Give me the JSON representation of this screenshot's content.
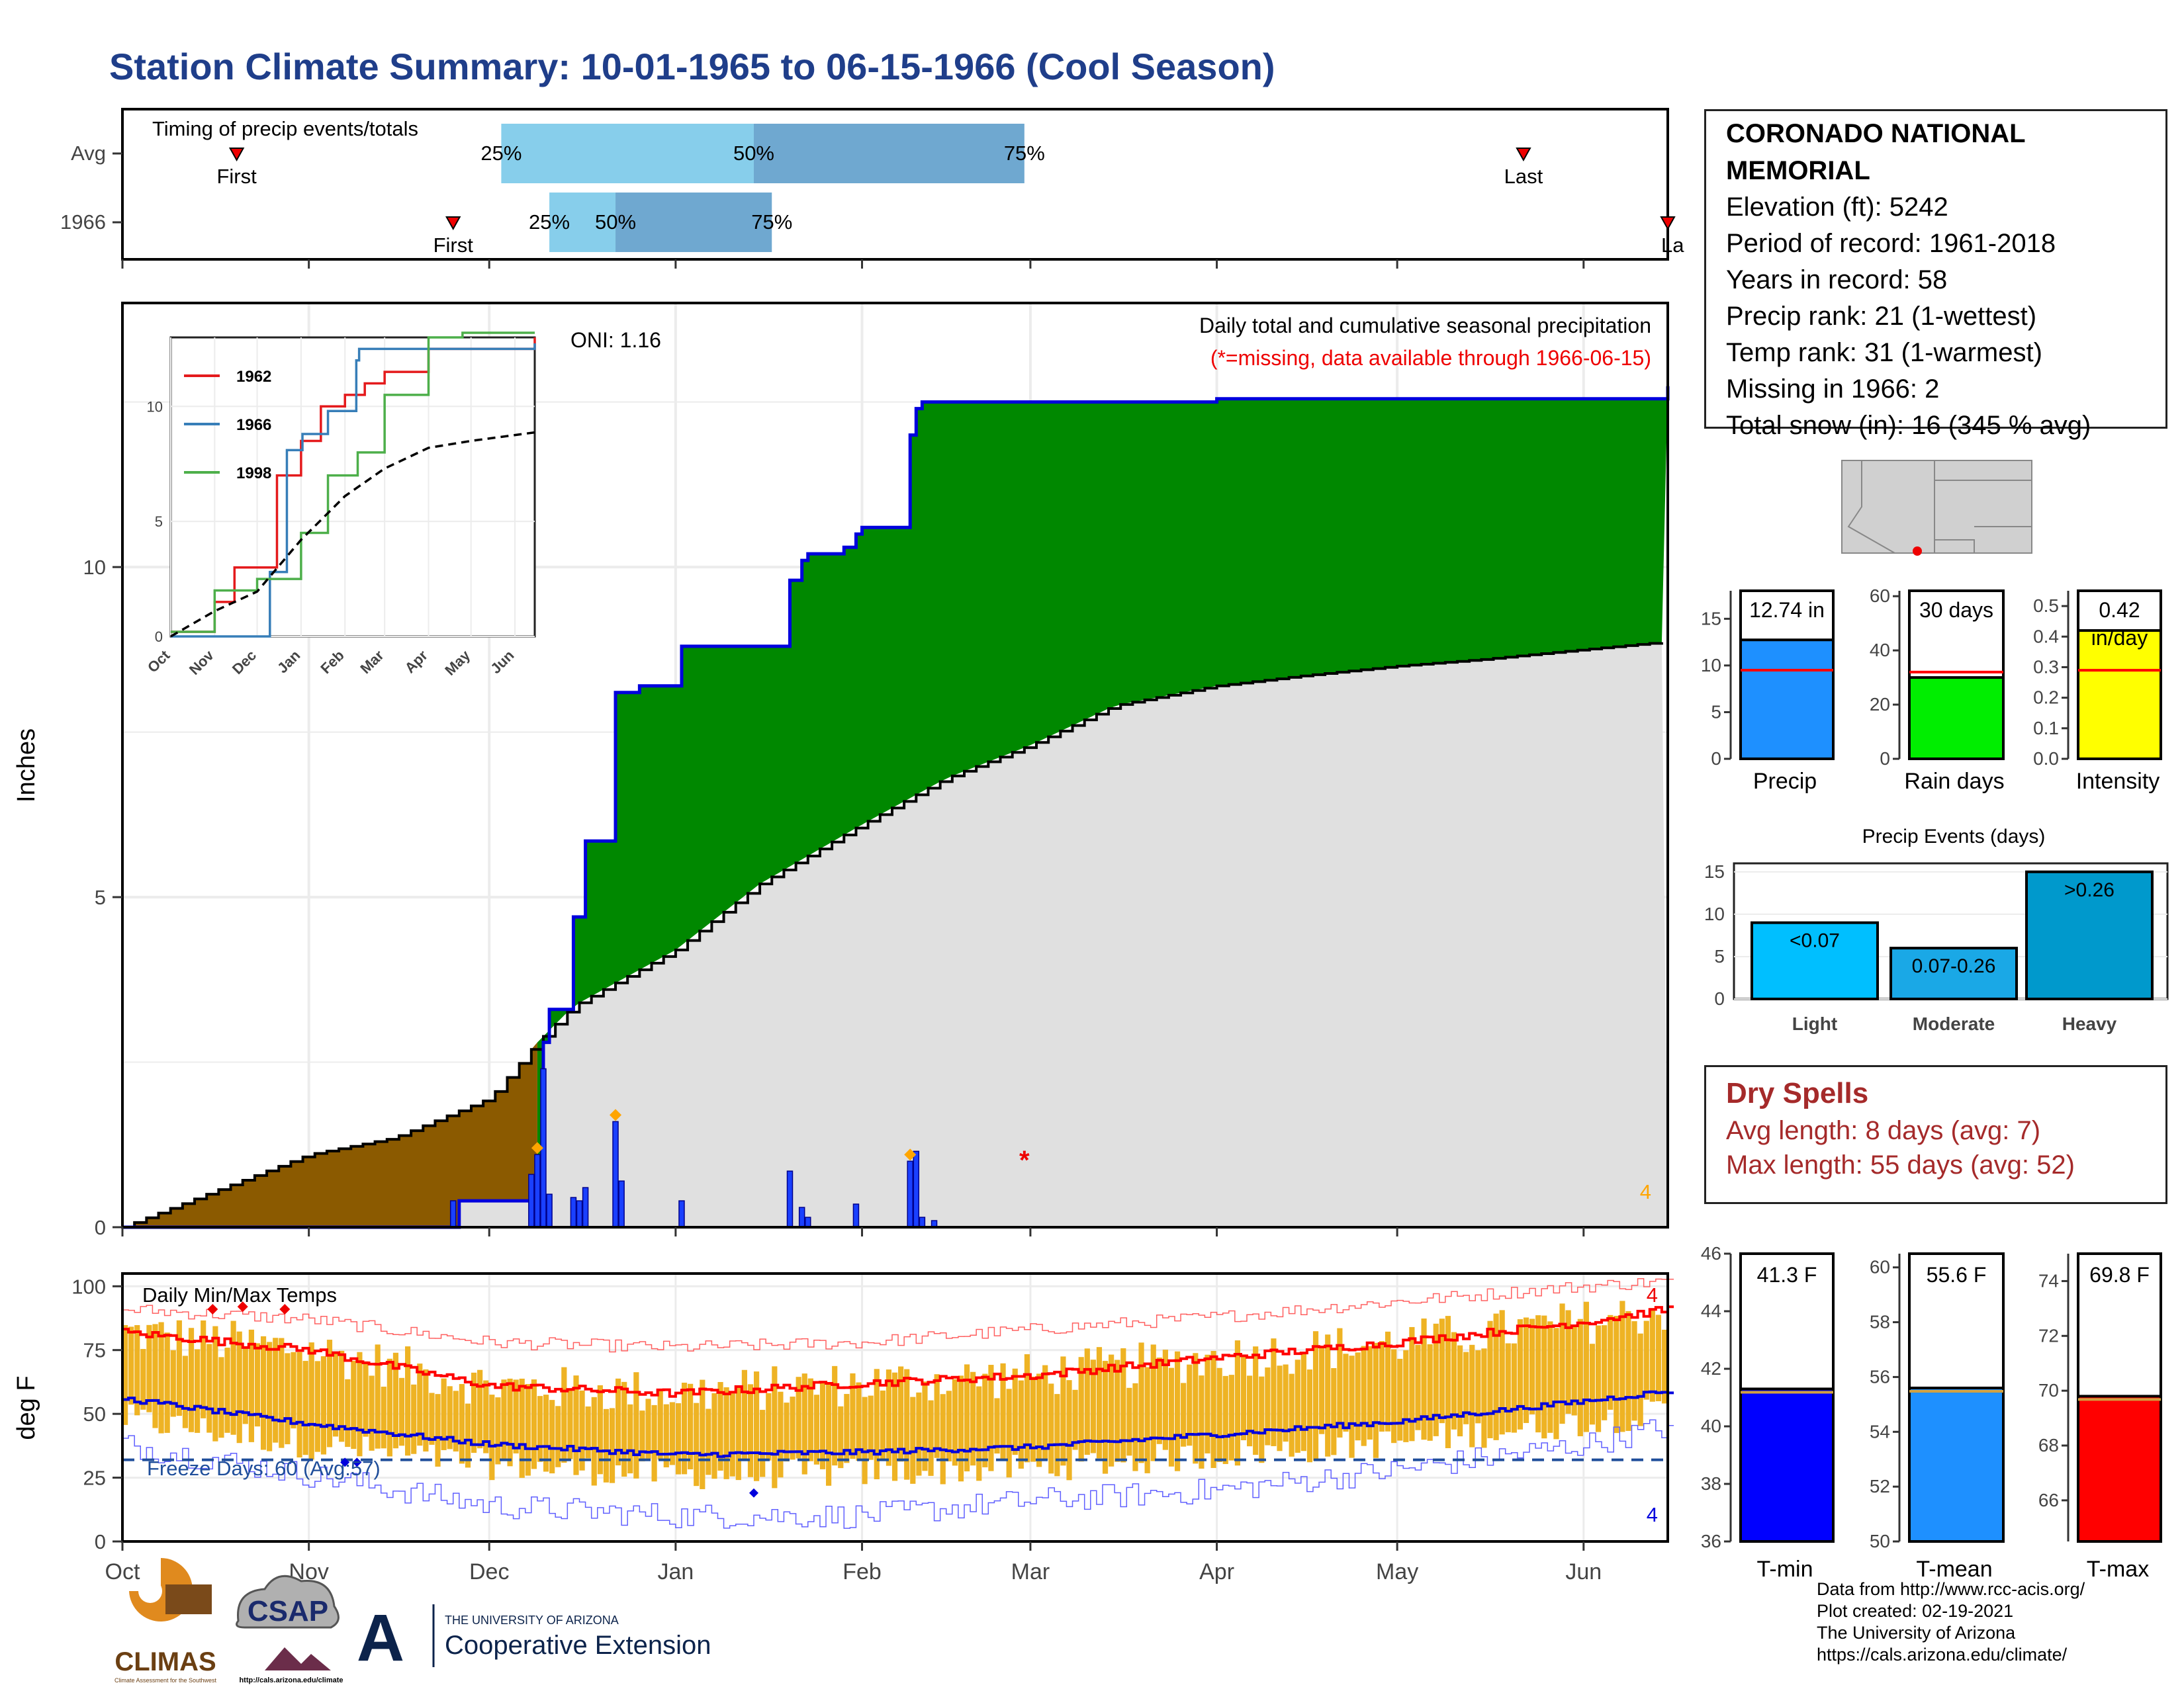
{
  "title": "Station Climate Summary: 10-01-1965 to 06-15-1966 (Cool Season)",
  "station": {
    "name": "CORONADO NATIONAL MEMORIAL",
    "lines": [
      "Elevation (ft): 5242",
      "Period of record: 1961-2018",
      "Years in record: 58",
      "Precip rank: 21 (1-wettest)",
      "Temp rank: 31 (1-warmest)",
      "Missing in 1966: 2",
      "Total snow (in): 16 (345 % avg)"
    ]
  },
  "colors": {
    "title": "#1f3e8a",
    "observed_area": "#008800",
    "average_area": "#e0e0e0",
    "early_area": "#8b5a00",
    "daily_bars": "#1a40ff",
    "dry_spells": "#a52a2a",
    "temp_bars": "#eeb324",
    "precip_bar": "#1e90ff",
    "raindays_bar": "#00ee00",
    "intensity_bar": "#ffff00",
    "light_bar": "#00bfff",
    "moderate_bar": "#1aa8e6",
    "heavy_bar": "#0099cc",
    "tmin_bar": "#0000ff",
    "tmean_bar": "#1e90ff",
    "tmax_bar": "#ff0000"
  },
  "timing": {
    "label": "Timing of precip events/totals",
    "rows": [
      "Avg",
      "1966"
    ],
    "first_label": "First",
    "last_label": "Last",
    "last_label_cut": "La",
    "pct_labels": [
      "25%",
      "50%",
      "75%"
    ]
  },
  "main": {
    "annotation_title": "Daily total and cumulative seasonal precipitation",
    "annotation_missing": "(*=missing, data available through 1966-06-15)",
    "oni": "ONI: 1.16",
    "ylabel": "Inches",
    "corner_count": "4",
    "missing_marker": "*"
  },
  "temps": {
    "title": "Daily Min/Max Temps",
    "ylabel": "deg F",
    "freeze": "Freeze Days: 60 (Avg:57)",
    "count_top": "4",
    "count_bottom": "4"
  },
  "months": [
    "Oct",
    "Nov",
    "Dec",
    "Jan",
    "Feb",
    "Mar",
    "Apr",
    "May",
    "Jun"
  ],
  "precip_events_title": "Precip Events (days)",
  "dry_spells": {
    "title": "Dry Spells",
    "avg": "Avg length: 8 days (avg: 7)",
    "max": "Max length: 55 days (avg: 52)"
  },
  "credits": [
    "Data from http://www.rcc-acis.org/",
    "Plot created: 02-19-2021",
    "The University of Arizona",
    "https://cals.arizona.edu/climate/"
  ],
  "logos": {
    "climas": "CLIMAS",
    "climas_sub": "Climate Assessment for the Southwest",
    "csap": "CSAP",
    "csap_url": "http://cals.arizona.edu/climate",
    "ua_small": "THE UNIVERSITY OF ARIZONA",
    "ua_big": "Cooperative Extension",
    "ua_letter": "A"
  },
  "chart_data": [
    {
      "id": "timing",
      "type": "bar",
      "title": "Timing of precip events/totals",
      "x_axis": "date, Oct 1 1965 - Jun 15 1966",
      "rows": [
        {
          "name": "Avg",
          "first": "1965-10-20",
          "p25": "1965-12-03",
          "p50": "1966-01-14",
          "p75": "1966-02-28",
          "last": "1966-05-22"
        },
        {
          "name": "1966",
          "first": "1965-11-25",
          "p25": "1965-12-11",
          "p50": "1965-12-22",
          "p75": "1966-01-17",
          "last": "1966-06-15"
        }
      ]
    },
    {
      "id": "cumulative_precip",
      "type": "area",
      "title": "Daily total and cumulative seasonal precipitation",
      "ylabel": "Inches",
      "ylim": [
        0,
        14
      ],
      "yticks": [
        0,
        5,
        10
      ],
      "x_range": [
        "1965-10-01",
        "1966-06-15"
      ],
      "series": [
        {
          "name": "cumulative observed",
          "points": [
            [
              "1965-10-01",
              0
            ],
            [
              "1965-11-25",
              0
            ],
            [
              "1965-11-26",
              0.4
            ],
            [
              "1965-12-09",
              0.4
            ],
            [
              "1965-12-10",
              2.8
            ],
            [
              "1965-12-11",
              3.3
            ],
            [
              "1965-12-14",
              3.3
            ],
            [
              "1965-12-15",
              4.7
            ],
            [
              "1965-12-17",
              5.85
            ],
            [
              "1965-12-21",
              5.85
            ],
            [
              "1965-12-22",
              8.1
            ],
            [
              "1965-12-26",
              8.2
            ],
            [
              "1966-01-01",
              8.2
            ],
            [
              "1966-01-02",
              8.8
            ],
            [
              "1966-01-19",
              8.8
            ],
            [
              "1966-01-20",
              9.8
            ],
            [
              "1966-01-22",
              10.1
            ],
            [
              "1966-01-23",
              10.2
            ],
            [
              "1966-01-29",
              10.3
            ],
            [
              "1966-01-31",
              10.5
            ],
            [
              "1966-02-01",
              10.6
            ],
            [
              "1966-02-08",
              10.6
            ],
            [
              "1966-02-09",
              12.0
            ],
            [
              "1966-02-10",
              12.4
            ],
            [
              "1966-02-11",
              12.5
            ],
            [
              "1966-03-01",
              12.5
            ],
            [
              "1966-04-01",
              12.55
            ],
            [
              "1966-06-15",
              12.74
            ]
          ]
        },
        {
          "name": "cumulative average",
          "points": [
            [
              "1965-10-01",
              0
            ],
            [
              "1965-10-15",
              0.5
            ],
            [
              "1965-11-01",
              1.1
            ],
            [
              "1965-11-15",
              1.35
            ],
            [
              "1965-12-01",
              1.95
            ],
            [
              "1965-12-09",
              2.8
            ],
            [
              "1965-12-15",
              3.35
            ],
            [
              "1966-01-01",
              4.2
            ],
            [
              "1966-01-15",
              5.2
            ],
            [
              "1966-02-01",
              6.1
            ],
            [
              "1966-02-15",
              6.8
            ],
            [
              "1966-03-01",
              7.3
            ],
            [
              "1966-03-15",
              7.9
            ],
            [
              "1966-04-01",
              8.2
            ],
            [
              "1966-04-15",
              8.35
            ],
            [
              "1966-05-01",
              8.5
            ],
            [
              "1966-05-15",
              8.6
            ],
            [
              "1966-06-01",
              8.75
            ],
            [
              "1966-06-15",
              8.87
            ]
          ]
        },
        {
          "name": "daily precip",
          "points": [
            [
              "1965-11-25",
              0.4
            ],
            [
              "1965-12-08",
              0.8
            ],
            [
              "1965-12-09",
              1.1
            ],
            [
              "1965-12-10",
              2.4
            ],
            [
              "1965-12-11",
              0.5
            ],
            [
              "1965-12-15",
              0.45
            ],
            [
              "1965-12-16",
              0.4
            ],
            [
              "1965-12-17",
              0.6
            ],
            [
              "1965-12-22",
              1.6
            ],
            [
              "1965-12-23",
              0.7
            ],
            [
              "1966-01-02",
              0.4
            ],
            [
              "1966-01-20",
              0.85
            ],
            [
              "1966-01-22",
              0.3
            ],
            [
              "1966-01-23",
              0.15
            ],
            [
              "1966-01-31",
              0.35
            ],
            [
              "1966-02-09",
              1.0
            ],
            [
              "1966-02-10",
              1.15
            ],
            [
              "1966-02-11",
              0.15
            ],
            [
              "1966-02-13",
              0.1
            ]
          ]
        }
      ]
    },
    {
      "id": "inset_cumulative",
      "type": "line",
      "ylim": [
        0,
        13
      ],
      "yticks": [
        0,
        5,
        10
      ],
      "x_labels": [
        "Oct",
        "Nov",
        "Dec",
        "Jan",
        "Feb",
        "Mar",
        "Apr",
        "May",
        "Jun"
      ],
      "series": [
        {
          "name": "1962",
          "color": "#e41a1c",
          "points": [
            [
              "1965-10-01",
              0.2
            ],
            [
              "1965-11-01",
              1.5
            ],
            [
              "1965-11-15",
              3
            ],
            [
              "1965-12-01",
              3
            ],
            [
              "1965-12-15",
              7
            ],
            [
              "1966-01-01",
              8.5
            ],
            [
              "1966-01-15",
              10
            ],
            [
              "1966-02-01",
              10.5
            ],
            [
              "1966-02-15",
              11
            ],
            [
              "1966-03-01",
              11.5
            ],
            [
              "1966-04-01",
              12.5
            ],
            [
              "1966-06-15",
              13
            ]
          ]
        },
        {
          "name": "1966",
          "color": "#377eb8",
          "points": [
            [
              "1965-10-01",
              0
            ],
            [
              "1965-11-25",
              0
            ],
            [
              "1965-12-10",
              2.8
            ],
            [
              "1965-12-22",
              8.1
            ],
            [
              "1966-01-02",
              8.8
            ],
            [
              "1966-01-20",
              9.8
            ],
            [
              "1966-02-09",
              12
            ],
            [
              "1966-02-11",
              12.5
            ],
            [
              "1966-06-15",
              12.74
            ]
          ]
        },
        {
          "name": "1998",
          "color": "#4daf4a",
          "points": [
            [
              "1965-10-01",
              0.2
            ],
            [
              "1965-11-01",
              2
            ],
            [
              "1965-12-01",
              2.5
            ],
            [
              "1966-01-01",
              4.5
            ],
            [
              "1966-01-20",
              7
            ],
            [
              "1966-02-10",
              8
            ],
            [
              "1966-03-01",
              10.5
            ],
            [
              "1966-04-01",
              13
            ],
            [
              "1966-04-25",
              13.2
            ],
            [
              "1966-06-15",
              13.2
            ]
          ]
        },
        {
          "name": "avg",
          "points": [
            [
              "1965-10-01",
              0
            ],
            [
              "1965-11-01",
              1.1
            ],
            [
              "1965-12-01",
              1.95
            ],
            [
              "1966-01-01",
              4.2
            ],
            [
              "1966-02-01",
              6.1
            ],
            [
              "1966-03-01",
              7.3
            ],
            [
              "1966-04-01",
              8.2
            ],
            [
              "1966-05-01",
              8.5
            ],
            [
              "1966-06-15",
              8.87
            ]
          ]
        }
      ]
    },
    {
      "id": "temperature",
      "type": "bar",
      "title": "Daily Min/Max Temps",
      "ylabel": "deg F",
      "ylim": [
        0,
        105
      ],
      "yticks": [
        0,
        25,
        50,
        75,
        100
      ],
      "freeze_line": 32,
      "series": [
        {
          "name": "avg max",
          "points": [
            [
              "1965-10-01",
              82
            ],
            [
              "1965-11-01",
              75
            ],
            [
              "1965-12-01",
              61
            ],
            [
              "1966-01-01",
              58
            ],
            [
              "1966-02-01",
              62
            ],
            [
              "1966-03-01",
              65
            ],
            [
              "1966-04-01",
              72
            ],
            [
              "1966-05-01",
              78
            ],
            [
              "1966-06-01",
              86
            ],
            [
              "1966-06-15",
              91
            ]
          ]
        },
        {
          "name": "avg min",
          "points": [
            [
              "1965-10-01",
              56
            ],
            [
              "1965-11-01",
              46
            ],
            [
              "1965-12-01",
              38
            ],
            [
              "1966-01-01",
              34
            ],
            [
              "1966-02-01",
              35
            ],
            [
              "1966-03-01",
              37
            ],
            [
              "1966-04-01",
              42
            ],
            [
              "1966-05-01",
              47
            ],
            [
              "1966-06-01",
              55
            ],
            [
              "1966-06-15",
              59
            ]
          ]
        },
        {
          "name": "record max",
          "points": [
            [
              "1965-10-01",
              91
            ],
            [
              "1965-11-01",
              87
            ],
            [
              "1965-12-01",
              78
            ],
            [
              "1966-01-01",
              76
            ],
            [
              "1966-02-01",
              78
            ],
            [
              "1966-03-01",
              83
            ],
            [
              "1966-04-01",
              88
            ],
            [
              "1966-05-01",
              94
            ],
            [
              "1966-06-01",
              100
            ],
            [
              "1966-06-15",
              102
            ]
          ]
        },
        {
          "name": "record min",
          "points": [
            [
              "1965-10-01",
              38
            ],
            [
              "1965-11-01",
              26
            ],
            [
              "1965-12-01",
              14
            ],
            [
              "1966-01-01",
              10
            ],
            [
              "1966-02-01",
              10
            ],
            [
              "1966-03-01",
              16
            ],
            [
              "1966-04-01",
              20
            ],
            [
              "1966-05-01",
              28
            ],
            [
              "1966-06-01",
              38
            ],
            [
              "1966-06-15",
              45
            ]
          ]
        }
      ]
    },
    {
      "id": "precip_summary",
      "type": "bar",
      "panels": [
        {
          "label": "Precip",
          "value": 12.74,
          "text": "12.74 in",
          "avg": 9.5,
          "ylim": [
            0,
            18
          ],
          "yticks": [
            0,
            5,
            10,
            15
          ]
        },
        {
          "label": "Rain days",
          "value": 30,
          "text": "30 days",
          "avg": 32,
          "ylim": [
            0,
            62
          ],
          "yticks": [
            0,
            20,
            40,
            60
          ]
        },
        {
          "label": "Intensity",
          "value": 0.42,
          "text": "0.42",
          "text2": "in/day",
          "avg": 0.29,
          "ylim": [
            0,
            0.55
          ],
          "yticks": [
            0.0,
            0.1,
            0.2,
            0.3,
            0.4,
            0.5
          ]
        }
      ]
    },
    {
      "id": "precip_events",
      "type": "bar",
      "title": "Precip Events (days)",
      "categories": [
        "Light",
        "Moderate",
        "Heavy"
      ],
      "bar_labels": [
        "<0.07",
        "0.07-0.26",
        ">0.26"
      ],
      "values": [
        9,
        6,
        15
      ],
      "ylim": [
        0,
        16
      ],
      "yticks": [
        0,
        5,
        10,
        15
      ]
    },
    {
      "id": "temp_summary",
      "type": "bar",
      "panels": [
        {
          "label": "T-min",
          "value": 41.3,
          "text": "41.3 F",
          "ylim": [
            36,
            46
          ],
          "yticks": [
            36,
            38,
            40,
            42,
            44,
            46
          ]
        },
        {
          "label": "T-mean",
          "value": 55.6,
          "text": "55.6 F",
          "ylim": [
            50,
            60.5
          ],
          "yticks": [
            50,
            52,
            54,
            56,
            58,
            60
          ]
        },
        {
          "label": "T-max",
          "value": 69.8,
          "text": "69.8 F",
          "ylim": [
            64.5,
            75
          ],
          "yticks": [
            66,
            68,
            70,
            72,
            74
          ]
        }
      ]
    }
  ]
}
